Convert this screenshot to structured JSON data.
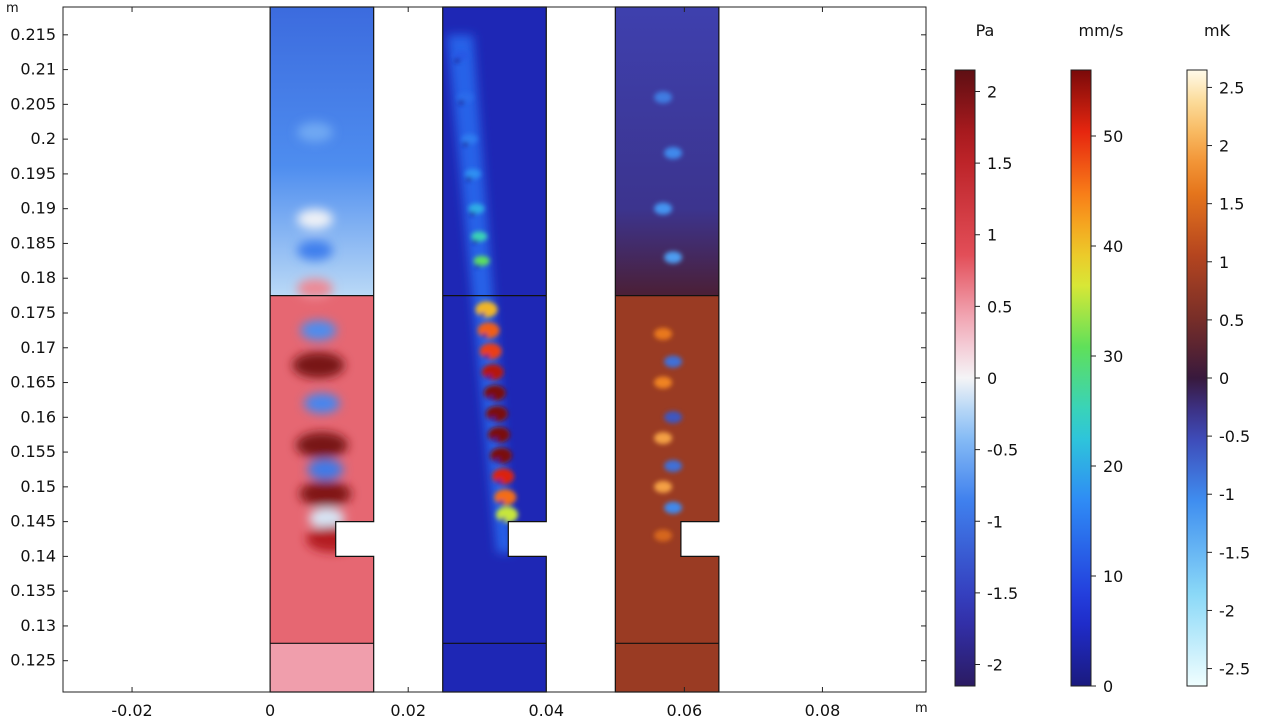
{
  "chart_data": {
    "type": "heatmap",
    "title": "",
    "x_axis": {
      "unit_label": "m",
      "range": [
        -0.03,
        0.095
      ],
      "ticks": [
        -0.02,
        0,
        0.02,
        0.04,
        0.06,
        0.08
      ],
      "tick_labels": [
        "-0.02",
        "0",
        "0.02",
        "0.04",
        "0.06",
        "0.08"
      ]
    },
    "y_axis": {
      "unit_label": "m",
      "range": [
        0.1205,
        0.219
      ],
      "ticks": [
        0.125,
        0.13,
        0.135,
        0.14,
        0.145,
        0.15,
        0.155,
        0.16,
        0.165,
        0.17,
        0.175,
        0.18,
        0.185,
        0.19,
        0.195,
        0.2,
        0.205,
        0.21,
        0.215
      ],
      "tick_labels": [
        "0.125",
        "0.13",
        "0.135",
        "0.14",
        "0.145",
        "0.15",
        "0.155",
        "0.16",
        "0.165",
        "0.17",
        "0.175",
        "0.18",
        "0.185",
        "0.19",
        "0.195",
        "0.2",
        "0.205",
        "0.21",
        "0.215"
      ]
    },
    "panels": [
      {
        "name": "pressure",
        "x_range": [
          0,
          0.015
        ],
        "colormap": "wave",
        "background_value": 0.72,
        "field_range": [
          -2.1,
          2.1
        ],
        "upper_region": {
          "y_from": 0.1775,
          "value": -1.0
        },
        "lobes": [
          {
            "x": 0.0065,
            "y": 0.201,
            "value": -0.55
          },
          {
            "x": 0.0065,
            "y": 0.1885,
            "value": -0.02
          },
          {
            "x": 0.0065,
            "y": 0.184,
            "value": -0.85
          },
          {
            "x": 0.0065,
            "y": 0.1785,
            "value": 0.55
          },
          {
            "x": 0.007,
            "y": 0.1725,
            "value": -0.75
          },
          {
            "x": 0.007,
            "y": 0.1675,
            "value": 1.95
          },
          {
            "x": 0.0075,
            "y": 0.162,
            "value": -0.8
          },
          {
            "x": 0.0075,
            "y": 0.156,
            "value": 1.95
          },
          {
            "x": 0.008,
            "y": 0.1525,
            "value": -0.9
          },
          {
            "x": 0.008,
            "y": 0.149,
            "value": 1.9
          },
          {
            "x": 0.0082,
            "y": 0.1455,
            "value": -0.1
          },
          {
            "x": 0.009,
            "y": 0.1425,
            "value": 1.6
          }
        ]
      },
      {
        "name": "velocity",
        "x_range": [
          0.025,
          0.04
        ],
        "colormap": "rainbow",
        "background_value": 4,
        "field_range": [
          0,
          55
        ],
        "stripe": {
          "top": [
            0.0265,
            0.215
          ],
          "bottom": [
            0.034,
            0.1405
          ]
        },
        "vortex_blobs": [
          {
            "y": 0.1755,
            "value": 40
          },
          {
            "y": 0.1725,
            "value": 46
          },
          {
            "y": 0.1695,
            "value": 48
          },
          {
            "y": 0.1665,
            "value": 52
          },
          {
            "y": 0.1635,
            "value": 55
          },
          {
            "y": 0.1605,
            "value": 55
          },
          {
            "y": 0.1575,
            "value": 55
          },
          {
            "y": 0.1545,
            "value": 55
          },
          {
            "y": 0.1515,
            "value": 50
          },
          {
            "y": 0.1485,
            "value": 45
          },
          {
            "y": 0.146,
            "value": 35
          },
          {
            "y": 0.1825,
            "value": 30
          },
          {
            "y": 0.186,
            "value": 25
          },
          {
            "y": 0.19,
            "value": 20
          },
          {
            "y": 0.195,
            "value": 17
          },
          {
            "y": 0.2,
            "value": 15
          },
          {
            "y": 0.206,
            "value": 13
          },
          {
            "y": 0.212,
            "value": 11
          }
        ]
      },
      {
        "name": "temperature",
        "x_range": [
          0.05,
          0.065
        ],
        "colormap": "heat",
        "lower_value": 0.8,
        "upper_value": -0.35,
        "field_range": [
          -2.6,
          2.6
        ],
        "upper_region": {
          "y_from": 0.1775
        },
        "spots": [
          {
            "y": 0.172,
            "value": 1.6
          },
          {
            "y": 0.168,
            "value": -0.8
          },
          {
            "y": 0.165,
            "value": 1.7
          },
          {
            "y": 0.16,
            "value": -0.6
          },
          {
            "y": 0.157,
            "value": 1.9
          },
          {
            "y": 0.153,
            "value": -0.8
          },
          {
            "y": 0.15,
            "value": 1.9
          },
          {
            "y": 0.147,
            "value": -1.0
          },
          {
            "y": 0.143,
            "value": 1.4
          },
          {
            "y": 0.183,
            "value": -1.2
          },
          {
            "y": 0.19,
            "value": -1.1
          },
          {
            "y": 0.198,
            "value": -1.0
          },
          {
            "y": 0.206,
            "value": -0.9
          }
        ]
      }
    ],
    "geometry": {
      "notch": {
        "y_range": [
          0.14,
          0.145
        ],
        "depth": 0.0055
      },
      "interface_lines_y": [
        0.1775,
        0.1275
      ]
    },
    "colorbars": [
      {
        "name": "pressure-colorbar",
        "unit": "Pa",
        "colormap": "wave",
        "range": [
          -2.15,
          2.15
        ],
        "ticks": [
          2,
          1.5,
          1,
          0.5,
          0,
          -0.5,
          -1,
          -1.5,
          -2
        ],
        "tick_labels": [
          "2",
          "1.5",
          "1",
          "0.5",
          "0",
          "-0.5",
          "-1",
          "-1.5",
          "-2"
        ]
      },
      {
        "name": "velocity-colorbar",
        "unit": "mm/s",
        "colormap": "rainbow",
        "range": [
          0,
          56
        ],
        "ticks": [
          50,
          40,
          30,
          20,
          10,
          0
        ],
        "tick_labels": [
          "50",
          "40",
          "30",
          "20",
          "10",
          "0"
        ]
      },
      {
        "name": "temperature-colorbar",
        "unit": "mK",
        "colormap": "heat",
        "range": [
          -2.65,
          2.65
        ],
        "ticks": [
          2.5,
          2,
          1.5,
          1,
          0.5,
          0,
          -0.5,
          -1,
          -1.5,
          -2,
          -2.5
        ],
        "tick_labels": [
          "2.5",
          "2",
          "1.5",
          "1",
          "0.5",
          "0",
          "-0.5",
          "-1",
          "-1.5",
          "-2",
          "-2.5"
        ]
      }
    ]
  }
}
